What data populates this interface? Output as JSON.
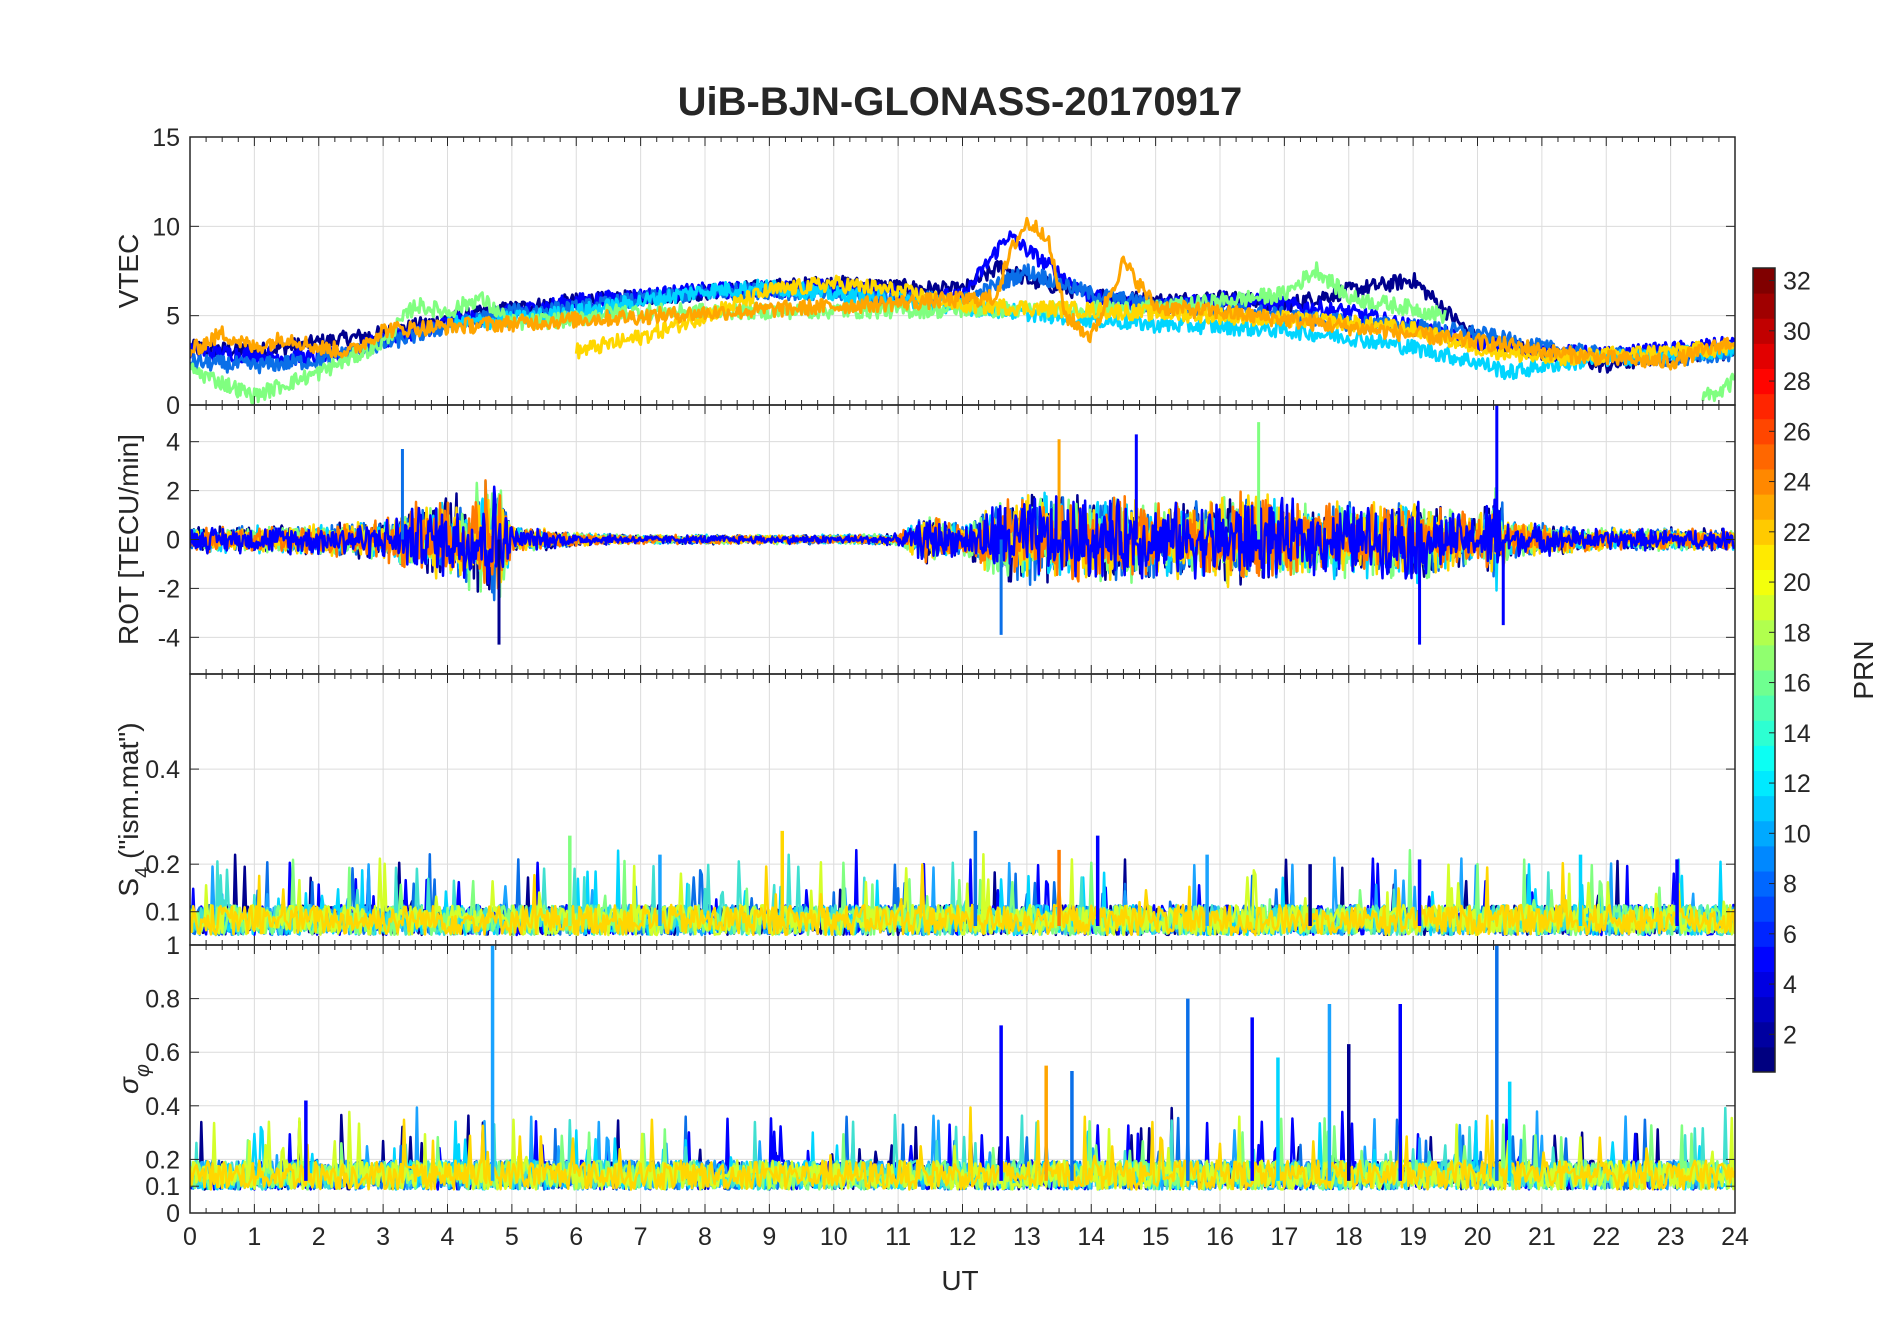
{
  "figure_title": "UiB-BJN-GLONASS-20170917",
  "colorbar": {
    "label": "PRN",
    "range": [
      1,
      32
    ],
    "ticks": [
      2,
      4,
      6,
      8,
      10,
      12,
      14,
      16,
      18,
      20,
      22,
      24,
      26,
      28,
      30,
      32
    ],
    "colormap": "jet"
  },
  "colors": {
    "grid": "#dcdcdc",
    "axis": "#262626",
    "prn_traces": [
      "#00008f",
      "#0000ff",
      "#0a6fe8",
      "#1aa3ff",
      "#00d5ff",
      "#40e0d0",
      "#80ff80",
      "#d4ff2a",
      "#ffd700",
      "#ffa500",
      "#ff7a00"
    ]
  },
  "chart_data": [
    {
      "type": "line",
      "panel": "VTEC",
      "ylabel": "VTEC",
      "xlabel": "",
      "xlim": [
        0,
        24
      ],
      "ylim": [
        0,
        15
      ],
      "yticks": [
        0,
        5,
        10,
        15
      ],
      "grid": true,
      "series": [
        {
          "name": "PRN 2",
          "color": "#00008f",
          "x": [
            0,
            1,
            2,
            3,
            4,
            5,
            6,
            7,
            8,
            9,
            10,
            11,
            12,
            12.6,
            13,
            14,
            15,
            16,
            17,
            18,
            19,
            20,
            21,
            22,
            23,
            24
          ],
          "values": [
            3.2,
            3.0,
            3.5,
            4.0,
            4.8,
            5.4,
            5.8,
            6.0,
            6.3,
            6.6,
            6.8,
            6.6,
            6.4,
            7.8,
            7.0,
            6.2,
            5.8,
            6.0,
            5.6,
            6.4,
            7.0,
            3.6,
            3.0,
            2.2,
            2.8,
            3.0
          ]
        },
        {
          "name": "PRN 6",
          "color": "#0000ff",
          "x": [
            0,
            2,
            4,
            6,
            8,
            10,
            12,
            12.7,
            14,
            15,
            16,
            18,
            20,
            21,
            22,
            24
          ],
          "values": [
            3.0,
            2.6,
            4.6,
            5.8,
            6.4,
            6.6,
            6.0,
            9.5,
            6.0,
            5.5,
            6.0,
            5.2,
            3.5,
            3.0,
            2.8,
            3.4
          ]
        },
        {
          "name": "PRN 9",
          "color": "#0a6fe8",
          "x": [
            0,
            1,
            2,
            3,
            4,
            5,
            6,
            7,
            8,
            9,
            10,
            11,
            12,
            13,
            14,
            15,
            16,
            17,
            18,
            19,
            20,
            21,
            22,
            23,
            24
          ],
          "values": [
            2.4,
            2.2,
            2.5,
            3.4,
            4.4,
            5.2,
            5.4,
            5.9,
            6.3,
            6.4,
            6.2,
            6.0,
            5.8,
            7.5,
            6.2,
            5.6,
            5.4,
            5.0,
            4.6,
            4.4,
            4.0,
            3.2,
            2.8,
            2.6,
            2.9
          ]
        },
        {
          "name": "PRN 12",
          "color": "#00d5ff",
          "x": [
            4,
            5,
            6,
            7,
            8,
            9,
            10,
            11,
            12,
            14,
            15,
            16,
            17,
            18,
            19,
            20,
            20.5,
            21,
            22,
            23,
            24
          ],
          "values": [
            4.5,
            4.8,
            5.2,
            5.8,
            6.4,
            6.6,
            6.2,
            5.9,
            5.5,
            4.8,
            4.5,
            4.4,
            4.2,
            3.8,
            3.2,
            2.4,
            1.8,
            2.2,
            2.6,
            2.8,
            3.1
          ]
        },
        {
          "name": "PRN 16",
          "color": "#80ff80",
          "x": [
            0,
            1,
            1.5,
            2,
            3,
            3.5,
            4,
            4.5,
            5,
            6,
            6.5,
            15,
            16,
            17,
            17.5,
            18,
            19,
            19.5
          ],
          "values": [
            2.0,
            0.5,
            1.2,
            1.8,
            3.5,
            5.6,
            5.2,
            6.0,
            4.6,
            4.8,
            5.2,
            5.4,
            5.8,
            6.2,
            7.6,
            6.0,
            5.4,
            5.0
          ]
        },
        {
          "name": "PRN 20",
          "color": "#ffd700",
          "x": [
            6,
            7,
            8,
            9,
            10,
            11,
            12,
            16,
            17,
            18,
            19,
            20,
            21,
            22,
            23,
            24
          ],
          "values": [
            3.0,
            3.8,
            5.0,
            6.4,
            6.8,
            6.4,
            5.6,
            5.0,
            4.8,
            4.6,
            4.2,
            3.2,
            2.6,
            2.8,
            3.0,
            3.2
          ]
        },
        {
          "name": "PRN 23",
          "color": "#ffa500",
          "x": [
            0,
            0.5,
            1,
            1.5,
            2,
            2.5,
            3,
            12.5,
            12.8,
            13,
            13.3,
            13.6,
            14,
            14.5,
            15,
            16,
            20.8,
            21,
            22,
            23,
            24
          ],
          "values": [
            3.0,
            4.0,
            3.2,
            3.8,
            3.2,
            3.0,
            4.2,
            6.0,
            9.0,
            10.2,
            9.6,
            5.0,
            3.8,
            8.0,
            5.5,
            5.2,
            3.2,
            3.0,
            2.6,
            2.4,
            3.6
          ]
        },
        {
          "name": "PRN 26",
          "color": "#80ff80",
          "x": [
            23.5,
            23.8,
            24
          ],
          "values": [
            0.4,
            0.8,
            1.4
          ]
        }
      ]
    },
    {
      "type": "line",
      "panel": "ROT",
      "ylabel": "ROT [TECU/min]",
      "xlabel": "",
      "xlim": [
        0,
        24
      ],
      "ylim": [
        -5.5,
        5.5
      ],
      "yticks": [
        -4,
        -2,
        0,
        2,
        4
      ],
      "grid": true,
      "envelope_x": [
        0,
        1,
        2,
        3,
        3.5,
        4,
        4.5,
        4.8,
        5,
        6,
        7,
        8,
        9,
        10,
        11,
        11.5,
        12,
        12.5,
        13,
        13.5,
        14,
        14.5,
        15,
        15.5,
        16,
        16.5,
        17,
        17.5,
        18,
        18.5,
        19,
        19.5,
        20,
        20.3,
        20.5,
        21,
        22,
        23,
        24
      ],
      "envelope_amplitude": [
        0.6,
        0.6,
        0.7,
        0.9,
        1.6,
        1.8,
        2.4,
        2.8,
        0.6,
        0.3,
        0.2,
        0.2,
        0.2,
        0.2,
        0.25,
        1.2,
        0.6,
        1.8,
        2.0,
        2.0,
        2.0,
        1.8,
        1.8,
        1.6,
        2.0,
        2.0,
        1.8,
        1.6,
        1.8,
        1.6,
        2.0,
        1.4,
        1.0,
        2.4,
        0.8,
        0.7,
        0.5,
        0.5,
        0.5
      ],
      "spikes": [
        {
          "x": 3.3,
          "value": 3.7,
          "color": "#0a6fe8"
        },
        {
          "x": 4.8,
          "value": -4.3,
          "color": "#00008f"
        },
        {
          "x": 12.6,
          "value": -3.9,
          "color": "#0a6fe8"
        },
        {
          "x": 13.5,
          "value": 4.1,
          "color": "#ffa500"
        },
        {
          "x": 14.7,
          "value": 4.3,
          "color": "#0000ff"
        },
        {
          "x": 16.6,
          "value": 4.8,
          "color": "#80ff80"
        },
        {
          "x": 19.1,
          "value": -4.3,
          "color": "#0000ff"
        },
        {
          "x": 20.3,
          "value": 5.5,
          "color": "#0000ff"
        },
        {
          "x": 20.4,
          "value": -3.5,
          "color": "#0000ff"
        }
      ]
    },
    {
      "type": "line",
      "panel": "S4",
      "ylabel": "S4 (\"ism.mat\")",
      "ylabel_main": "S",
      "ylabel_sub": "4",
      "ylabel_rest": " (\"ism.mat\")",
      "xlabel": "",
      "xlim": [
        0,
        24
      ],
      "ylim": [
        0.03,
        0.6
      ],
      "yticks": [
        0.1,
        0.2,
        0.4
      ],
      "grid": true,
      "baseline": 0.07,
      "spikes": [
        {
          "x": 5.9,
          "value": 0.26,
          "color": "#80ff80"
        },
        {
          "x": 7.3,
          "value": 0.22,
          "color": "#1aa3ff"
        },
        {
          "x": 9.2,
          "value": 0.27,
          "color": "#ffd700"
        },
        {
          "x": 12.2,
          "value": 0.27,
          "color": "#0a6fe8"
        },
        {
          "x": 13.5,
          "value": 0.23,
          "color": "#ff7a00"
        },
        {
          "x": 14.1,
          "value": 0.26,
          "color": "#0000ff"
        },
        {
          "x": 15.8,
          "value": 0.22,
          "color": "#1aa3ff"
        },
        {
          "x": 17.4,
          "value": 0.2,
          "color": "#00008f"
        },
        {
          "x": 19.1,
          "value": 0.21,
          "color": "#0000ff"
        },
        {
          "x": 21.6,
          "value": 0.22,
          "color": "#00d5ff"
        },
        {
          "x": 23.1,
          "value": 0.21,
          "color": "#0000ff"
        }
      ]
    },
    {
      "type": "line",
      "panel": "sigma_phi",
      "ylabel": "σφ",
      "ylabel_main": "σ",
      "ylabel_sub": "φ",
      "xlabel": "UT",
      "xlim": [
        0,
        24
      ],
      "xticks": [
        0,
        1,
        2,
        3,
        4,
        5,
        6,
        7,
        8,
        9,
        10,
        11,
        12,
        13,
        14,
        15,
        16,
        17,
        18,
        19,
        20,
        21,
        22,
        23,
        24
      ],
      "ylim": [
        0,
        1
      ],
      "yticks": [
        0,
        0.1,
        0.2,
        0.4,
        0.6,
        0.8,
        1
      ],
      "grid": true,
      "baseline": 0.12,
      "spikes": [
        {
          "x": 1.8,
          "value": 0.42,
          "color": "#0000ff"
        },
        {
          "x": 4.7,
          "value": 1.0,
          "color": "#1aa3ff"
        },
        {
          "x": 12.6,
          "value": 0.7,
          "color": "#0000ff"
        },
        {
          "x": 13.3,
          "value": 0.55,
          "color": "#ffa500"
        },
        {
          "x": 13.7,
          "value": 0.53,
          "color": "#0a6fe8"
        },
        {
          "x": 15.5,
          "value": 0.8,
          "color": "#0a6fe8"
        },
        {
          "x": 16.5,
          "value": 0.73,
          "color": "#0000ff"
        },
        {
          "x": 16.9,
          "value": 0.58,
          "color": "#00d5ff"
        },
        {
          "x": 17.7,
          "value": 0.78,
          "color": "#1aa3ff"
        },
        {
          "x": 18.0,
          "value": 0.63,
          "color": "#00008f"
        },
        {
          "x": 18.8,
          "value": 0.78,
          "color": "#0000ff"
        },
        {
          "x": 20.3,
          "value": 1.0,
          "color": "#0a6fe8"
        },
        {
          "x": 20.5,
          "value": 0.49,
          "color": "#00d5ff"
        }
      ]
    }
  ]
}
